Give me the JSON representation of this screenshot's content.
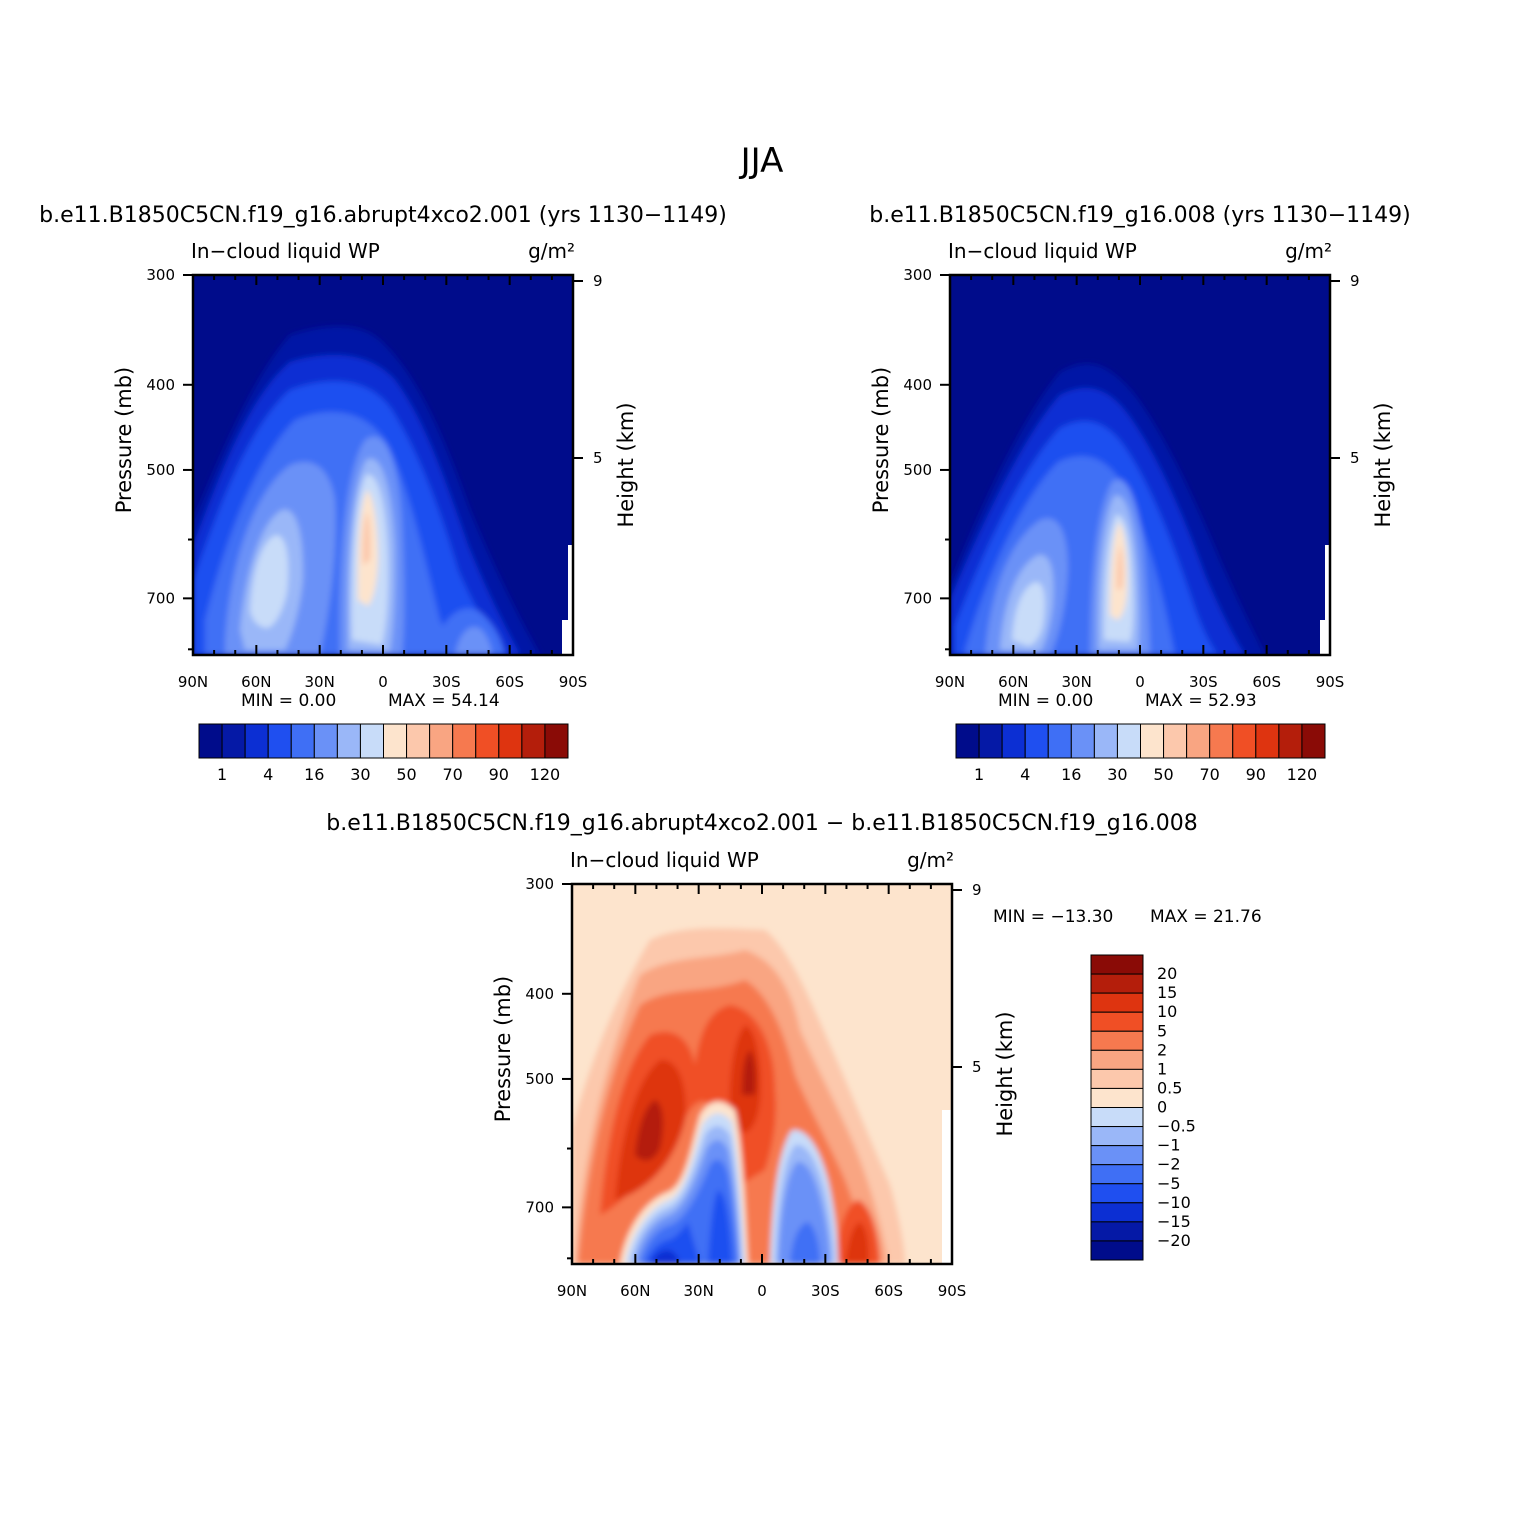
{
  "figure_title": "JJA",
  "chart_data": [
    {
      "id": "panel-a",
      "type": "heatmap",
      "title": "b.e11.B1850C5CN.f19_g16.abrupt4xco2.001 (yrs 1130−1149)",
      "left_label": "In−cloud liquid WP",
      "right_label": "g/m²",
      "ylabel": "Pressure (mb)",
      "y2label": "Height (km)",
      "x_ticks": [
        "90N",
        "60N",
        "30N",
        "0",
        "30S",
        "60S",
        "90S"
      ],
      "y_ticks": [
        "300",
        "400",
        "500",
        "700"
      ],
      "y2_ticks": [
        "9",
        "5"
      ],
      "min_text": "MIN =    0.00",
      "max_text": "MAX =   54.14",
      "min": 0.0,
      "max": 54.14,
      "colorbar_labels": [
        "1",
        "4",
        "16",
        "30",
        "50",
        "70",
        "90",
        "120"
      ],
      "colorbar_colors": [
        "#000c8b",
        "#0519a6",
        "#0c2fd3",
        "#1f4ff0",
        "#3f6ff5",
        "#6a91f7",
        "#9ab7f8",
        "#c8dcf9",
        "#fde4cd",
        "#fcc8ac",
        "#f9a582",
        "#f6794f",
        "#f04f25",
        "#de3410",
        "#b41e0b",
        "#8a0b06"
      ]
    },
    {
      "id": "panel-b",
      "type": "heatmap",
      "title": "b.e11.B1850C5CN.f19_g16.008 (yrs 1130−1149)",
      "left_label": "In−cloud liquid WP",
      "right_label": "g/m²",
      "ylabel": "Pressure (mb)",
      "y2label": "Height (km)",
      "x_ticks": [
        "90N",
        "60N",
        "30N",
        "0",
        "30S",
        "60S",
        "90S"
      ],
      "y_ticks": [
        "300",
        "400",
        "500",
        "700"
      ],
      "y2_ticks": [
        "9",
        "5"
      ],
      "min_text": "MIN =    0.00",
      "max_text": "MAX =   52.93",
      "min": 0.0,
      "max": 52.93,
      "colorbar_labels": [
        "1",
        "4",
        "16",
        "30",
        "50",
        "70",
        "90",
        "120"
      ],
      "colorbar_colors": [
        "#000c8b",
        "#0519a6",
        "#0c2fd3",
        "#1f4ff0",
        "#3f6ff5",
        "#6a91f7",
        "#9ab7f8",
        "#c8dcf9",
        "#fde4cd",
        "#fcc8ac",
        "#f9a582",
        "#f6794f",
        "#f04f25",
        "#de3410",
        "#b41e0b",
        "#8a0b06"
      ]
    },
    {
      "id": "panel-diff",
      "type": "heatmap",
      "title": "b.e11.B1850C5CN.f19_g16.abrupt4xco2.001 − b.e11.B1850C5CN.f19_g16.008",
      "left_label": "In−cloud liquid WP",
      "right_label": "g/m²",
      "ylabel": "Pressure (mb)",
      "y2label": "Height (km)",
      "x_ticks": [
        "90N",
        "60N",
        "30N",
        "0",
        "30S",
        "60S",
        "90S"
      ],
      "y_ticks": [
        "300",
        "400",
        "500",
        "700"
      ],
      "y2_ticks": [
        "9",
        "5"
      ],
      "min_text": "MIN = −13.30",
      "max_text": "MAX =   21.76",
      "min": -13.3,
      "max": 21.76,
      "colorbar_labels": [
        "20",
        "15",
        "10",
        "5",
        "2",
        "1",
        "0.5",
        "0",
        "−0.5",
        "−1",
        "−2",
        "−5",
        "−10",
        "−15",
        "−20"
      ],
      "colorbar_colors": [
        "#8a0b06",
        "#b41e0b",
        "#de3410",
        "#f04f25",
        "#f6794f",
        "#f9a582",
        "#fcc8ac",
        "#fde4cd",
        "#c8dcf9",
        "#9ab7f8",
        "#6a91f7",
        "#3f6ff5",
        "#1f4ff0",
        "#0c2fd3",
        "#0519a6",
        "#000c8b"
      ]
    }
  ]
}
